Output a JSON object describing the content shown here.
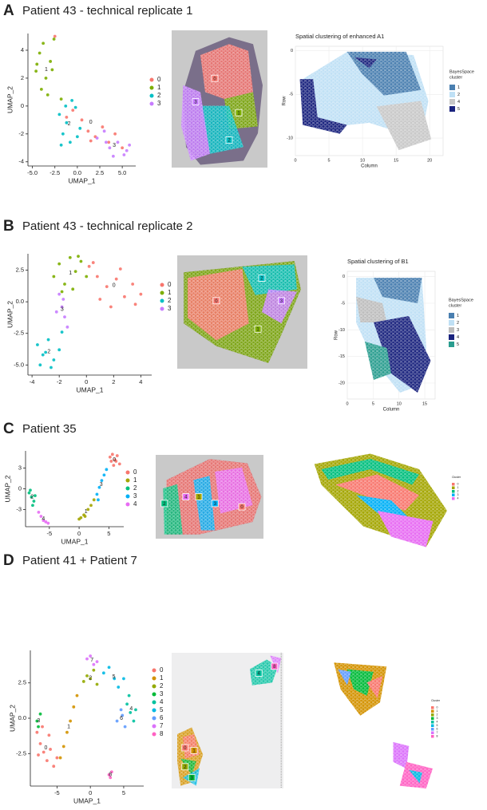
{
  "panels": [
    {
      "letter": "A",
      "title": "Patient 43 - technical replicate 1"
    },
    {
      "letter": "B",
      "title": "Patient 43 - technical replicate 2"
    },
    {
      "letter": "C",
      "title": "Patient 35"
    },
    {
      "letter": "D",
      "title": "Patient 41 + Patient 7"
    }
  ],
  "chart_data": [
    {
      "type": "scatter",
      "xlabel": "UMAP_1",
      "ylabel": "UMAP_2",
      "xlim": [
        -5.5,
        6.5
      ],
      "ylim": [
        -4.3,
        5.2
      ],
      "xticks": [
        {
          "value": -5,
          "label": "-5.0"
        },
        -2.5,
        {
          "value": 0,
          "label": "0.0"
        },
        2.5,
        {
          "value": 5,
          "label": "5.0"
        }
      ],
      "yticks": [
        4,
        2,
        0,
        -2,
        -4
      ],
      "series": [
        {
          "name": "0",
          "color": "#F8766D",
          "x": [
            0.5,
            1.2,
            2.0,
            2.8,
            3.5,
            4.2,
            5.0,
            -1.2,
            -0.5,
            1.5,
            -2.5
          ],
          "y": [
            -1.0,
            -1.8,
            -2.2,
            -1.5,
            -2.6,
            -2.0,
            -3.0,
            -0.8,
            -0.3,
            -2.5,
            5.0
          ]
        },
        {
          "name": "1",
          "color": "#7CAE00",
          "x": [
            -4.6,
            -4.2,
            -3.8,
            -3.5,
            -3.0,
            -2.6,
            -4.0,
            -3.3,
            -2.8,
            -1.8,
            -4.5
          ],
          "y": [
            2.5,
            3.8,
            4.5,
            2.0,
            3.2,
            4.8,
            1.2,
            0.8,
            2.6,
            0.5,
            3.0
          ]
        },
        {
          "name": "2",
          "color": "#00BFC4",
          "x": [
            -2.0,
            -1.6,
            -1.2,
            -0.8,
            -0.2,
            0.3,
            -1.8,
            -0.6,
            0.0,
            -1.3
          ],
          "y": [
            -0.6,
            -2.0,
            -1.2,
            -2.6,
            -0.1,
            -1.6,
            -2.8,
            0.4,
            -2.2,
            0.0
          ]
        },
        {
          "name": "3",
          "color": "#C77CFF",
          "x": [
            2.2,
            3.0,
            3.6,
            4.5,
            5.2,
            5.8,
            4.0,
            3.2,
            5.5
          ],
          "y": [
            -2.3,
            -1.8,
            -3.0,
            -2.6,
            -3.5,
            -2.8,
            -3.6,
            -2.6,
            -3.2
          ]
        }
      ]
    },
    {
      "type": "scatter",
      "xlabel": "UMAP_1",
      "ylabel": "UMAP_2",
      "xlim": [
        -4.3,
        4.8
      ],
      "ylim": [
        -5.8,
        3.8
      ],
      "xticks": [
        -4,
        -2,
        0,
        2,
        4
      ],
      "yticks": [
        2.5,
        {
          "value": 0,
          "label": "0.0"
        },
        -2.5,
        {
          "value": -5,
          "label": "-5.0"
        }
      ],
      "series": [
        {
          "name": "0",
          "color": "#F8766D",
          "x": [
            0.2,
            0.8,
            1.5,
            2.2,
            2.8,
            3.4,
            4.0,
            1.0,
            2.5,
            3.6,
            1.8,
            0.5
          ],
          "y": [
            2.8,
            2.0,
            1.2,
            1.8,
            0.4,
            1.4,
            0.6,
            0.2,
            2.6,
            -0.2,
            -0.4,
            3.1
          ]
        },
        {
          "name": "1",
          "color": "#7CAE00",
          "x": [
            -2.4,
            -2.0,
            -1.6,
            -1.2,
            -0.8,
            -0.4,
            0.0,
            -1.8,
            -1.0,
            -0.6
          ],
          "y": [
            2.0,
            3.0,
            1.4,
            3.5,
            2.4,
            3.2,
            2.0,
            0.8,
            1.0,
            3.6
          ]
        },
        {
          "name": "2",
          "color": "#00BFC4",
          "x": [
            -3.6,
            -3.2,
            -2.8,
            -2.4,
            -2.0,
            -3.4,
            -2.6,
            -1.8,
            -3.0
          ],
          "y": [
            -3.4,
            -4.2,
            -3.0,
            -4.6,
            -3.8,
            -5.0,
            -5.2,
            -2.4,
            -4.0
          ]
        },
        {
          "name": "3",
          "color": "#C77CFF",
          "x": [
            -2.0,
            -1.8,
            -1.6,
            -1.4,
            -2.2,
            -1.7
          ],
          "y": [
            0.6,
            -0.4,
            -1.2,
            -2.0,
            -0.8,
            0.2
          ]
        }
      ]
    },
    {
      "type": "scatter",
      "xlabel": "UMAP_1",
      "ylabel": "UMAP_2",
      "xlim": [
        -9,
        7.5
      ],
      "ylim": [
        -5.5,
        5.5
      ],
      "xticks": [
        -5,
        0,
        5
      ],
      "yticks": [
        3,
        0,
        -3
      ],
      "series": [
        {
          "name": "0",
          "color": "#F8766D",
          "x": [
            5.2,
            5.6,
            6.0,
            6.4,
            6.8,
            5.8,
            6.2,
            5.4
          ],
          "y": [
            4.6,
            5.0,
            4.2,
            4.8,
            3.6,
            3.4,
            4.0,
            4.0
          ]
        },
        {
          "name": "1",
          "color": "#A3A500",
          "x": [
            0.0,
            0.8,
            1.5,
            2.0,
            2.5,
            1.0,
            0.3
          ],
          "y": [
            -4.4,
            -3.8,
            -3.0,
            -2.4,
            -1.6,
            -4.0,
            -4.2
          ]
        },
        {
          "name": "2",
          "color": "#00BF7D",
          "x": [
            -8.4,
            -8.0,
            -7.6,
            -7.8,
            -8.2,
            -7.4
          ],
          "y": [
            -0.6,
            -1.2,
            -1.8,
            -2.4,
            -0.2,
            -1.0
          ]
        },
        {
          "name": "3",
          "color": "#00B0F6",
          "x": [
            3.0,
            3.4,
            3.8,
            4.2,
            4.6,
            3.2
          ],
          "y": [
            -0.8,
            0.2,
            1.2,
            2.0,
            2.8,
            -1.6
          ]
        },
        {
          "name": "4",
          "color": "#E76BF3",
          "x": [
            -6.8,
            -6.4,
            -6.0,
            -5.6,
            -5.2
          ],
          "y": [
            -3.4,
            -4.0,
            -4.6,
            -4.8,
            -5.0
          ]
        }
      ]
    },
    {
      "type": "scatter",
      "xlabel": "UMAP_1",
      "ylabel": "UMAP_2",
      "xlim": [
        -9,
        8
      ],
      "ylim": [
        -4.8,
        4.8
      ],
      "xticks": [
        -5,
        0,
        5
      ],
      "yticks": [
        2.5,
        {
          "value": 0,
          "label": "0.0"
        },
        -2.5
      ],
      "series": [
        {
          "name": "0",
          "color": "#F8766D",
          "x": [
            -8,
            -7.5,
            -7,
            -6.5,
            -6,
            -5.5,
            -7.2,
            -6.2,
            -5,
            -7.8
          ],
          "y": [
            -1,
            -1.8,
            -2.4,
            -3,
            -2.2,
            -3.4,
            -0.6,
            -1.2,
            -2.8,
            -2.6
          ]
        },
        {
          "name": "1",
          "color": "#D39200",
          "x": [
            -4.5,
            -4,
            -3.5,
            -3,
            -2.5,
            -2
          ],
          "y": [
            -2.8,
            -2,
            -1,
            -0.2,
            0.8,
            1.6
          ]
        },
        {
          "name": "2",
          "color": "#93AA00",
          "x": [
            -1,
            -0.5,
            0,
            0.5,
            1
          ],
          "y": [
            2.6,
            3,
            2.8,
            3.4,
            2.4
          ]
        },
        {
          "name": "3",
          "color": "#00BA38",
          "x": [
            -8,
            -7.5,
            -7.8
          ],
          "y": [
            -0.2,
            0.3,
            -0.6
          ]
        },
        {
          "name": "4",
          "color": "#00C19F",
          "x": [
            5.5,
            6,
            6.5,
            5.8,
            6.8
          ],
          "y": [
            1,
            0.4,
            -0.2,
            1.6,
            0.6
          ]
        },
        {
          "name": "5",
          "color": "#00B9E3",
          "x": [
            2,
            2.8,
            3.6,
            4.2,
            5
          ],
          "y": [
            3.2,
            3.6,
            2.8,
            2.2,
            2.8
          ]
        },
        {
          "name": "6",
          "color": "#619CFF",
          "x": [
            4,
            4.6,
            5.2,
            4.8
          ],
          "y": [
            -0.2,
            0.6,
            -0.6,
            0.2
          ]
        },
        {
          "name": "7",
          "color": "#DB72FB",
          "x": [
            -0.5,
            0,
            0.5,
            1
          ],
          "y": [
            4.2,
            4.4,
            3.8,
            4.0
          ]
        },
        {
          "name": "8",
          "color": "#FF61C3",
          "x": [
            2.8,
            3.0,
            3.2
          ],
          "y": [
            -4,
            -4.2,
            -3.8
          ]
        }
      ]
    },
    {
      "type": "spatial",
      "title": "Spatial clustering of enhanced A1",
      "xlabel": "Column",
      "ylabel": "Row",
      "xlim": [
        0,
        22
      ],
      "ylim": [
        -12,
        0.5
      ],
      "xticks": [
        0,
        5,
        10,
        15,
        20
      ],
      "yticks": [
        0,
        -5,
        -10
      ],
      "legend_title": [
        "BayesSpace",
        "cluster"
      ],
      "series": [
        {
          "name": "1",
          "color": "#4A7FB0"
        },
        {
          "name": "2",
          "color": "#BFE0F5"
        },
        {
          "name": "4",
          "color": "#C8C8C8"
        },
        {
          "name": "5",
          "color": "#1A237E"
        }
      ]
    },
    {
      "type": "spatial",
      "title": "Spatial clustering of B1",
      "xlabel": "Column",
      "ylabel": "Row",
      "xlim": [
        0,
        17
      ],
      "ylim": [
        -23,
        1
      ],
      "xticks": [
        0,
        5,
        10,
        15
      ],
      "yticks": [
        0,
        -5,
        -10,
        -15,
        -20
      ],
      "legend_title": [
        "BayesSpace",
        "cluster"
      ],
      "series": [
        {
          "name": "1",
          "color": "#4A7FB0"
        },
        {
          "name": "2",
          "color": "#BFE0F5"
        },
        {
          "name": "3",
          "color": "#BDBDBD"
        },
        {
          "name": "4",
          "color": "#1A237E"
        },
        {
          "name": "5",
          "color": "#2A9D8F"
        }
      ]
    },
    {
      "type": "spatial",
      "legend_title": [
        "Cluster"
      ],
      "series": [
        {
          "name": "0",
          "color": "#F8766D"
        },
        {
          "name": "1",
          "color": "#A3A500"
        },
        {
          "name": "2",
          "color": "#00BF7D"
        },
        {
          "name": "3",
          "color": "#00B0F6"
        },
        {
          "name": "4",
          "color": "#E76BF3"
        }
      ]
    },
    {
      "type": "spatial",
      "legend_title": [
        "Cluster"
      ],
      "series": [
        {
          "name": "0",
          "color": "#F8766D"
        },
        {
          "name": "1",
          "color": "#D39200"
        },
        {
          "name": "2",
          "color": "#93AA00"
        },
        {
          "name": "3",
          "color": "#00BA38"
        },
        {
          "name": "4",
          "color": "#00C19F"
        },
        {
          "name": "5",
          "color": "#00B9E3"
        },
        {
          "name": "6",
          "color": "#619CFF"
        },
        {
          "name": "7",
          "color": "#DB72FB"
        },
        {
          "name": "8",
          "color": "#FF61C3"
        }
      ]
    }
  ]
}
